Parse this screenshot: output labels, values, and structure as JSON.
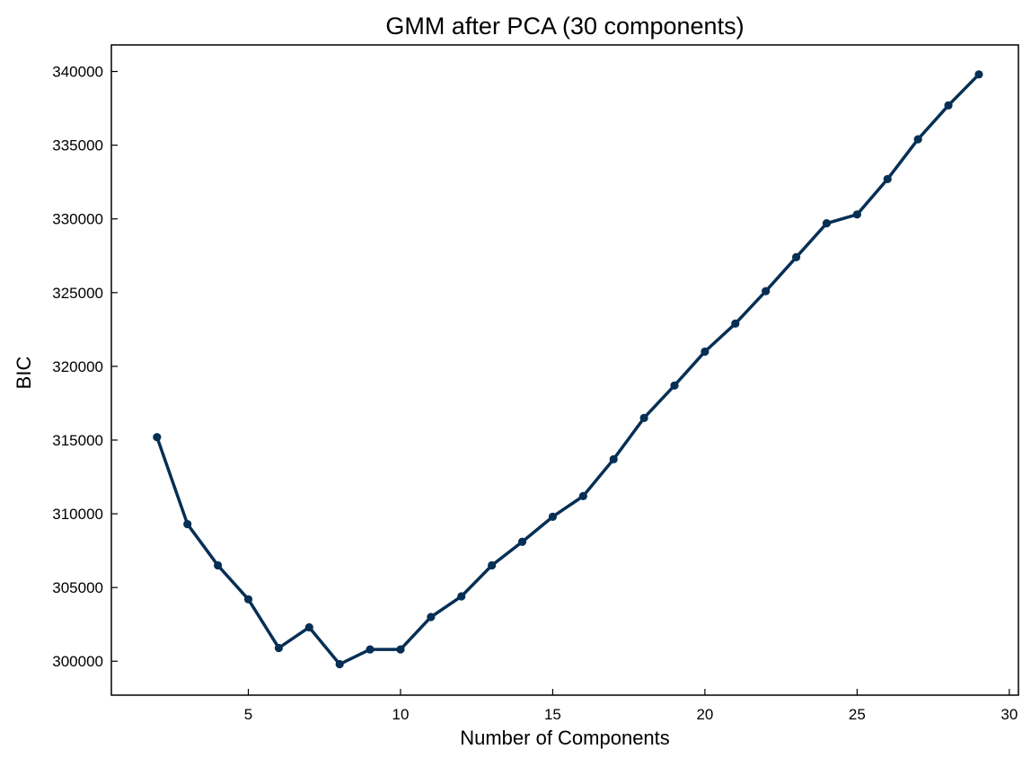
{
  "chart_data": {
    "type": "line",
    "title": "GMM after PCA (30 components)",
    "xlabel": "Number of Components",
    "ylabel": "BIC",
    "xlim": [
      0.5,
      30.3
    ],
    "ylim": [
      297700,
      341800
    ],
    "xticks": [
      5,
      10,
      15,
      20,
      25,
      30
    ],
    "yticks": [
      300000,
      305000,
      310000,
      315000,
      320000,
      325000,
      330000,
      335000,
      340000
    ],
    "grid": false,
    "legend": "none",
    "series": [
      {
        "color": "#062f55",
        "marker": "circle",
        "x": [
          2,
          3,
          4,
          5,
          6,
          7,
          8,
          9,
          10,
          11,
          12,
          13,
          14,
          15,
          16,
          17,
          18,
          19,
          20,
          21,
          22,
          23,
          24,
          25,
          26,
          27,
          28,
          29
        ],
        "y": [
          315200,
          309300,
          306500,
          304200,
          300900,
          302300,
          299800,
          300800,
          300800,
          303000,
          304400,
          306500,
          308100,
          309800,
          311200,
          313700,
          316500,
          318700,
          321000,
          322900,
          325100,
          327400,
          329700,
          330300,
          332700,
          335400,
          337700,
          339800
        ]
      }
    ]
  }
}
